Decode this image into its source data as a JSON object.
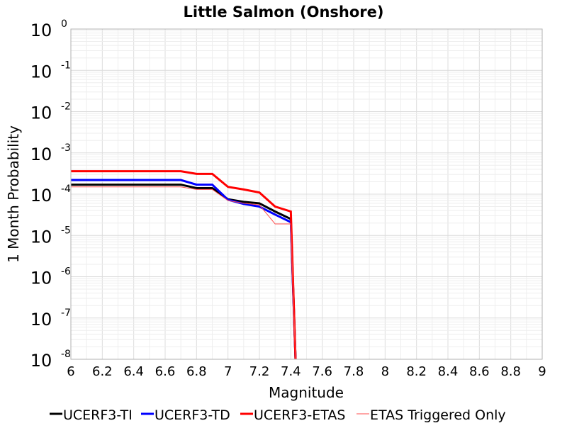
{
  "chart_data": {
    "type": "line",
    "title": "Little Salmon (Onshore)",
    "xlabel": "Magnitude",
    "ylabel": "1 Month Probability",
    "xlim": [
      6,
      9
    ],
    "ylim": [
      1e-08,
      1
    ],
    "yscale": "log",
    "grid": true,
    "legend_placement": "bottom",
    "x_ticks": [
      "6",
      "6.2",
      "6.4",
      "6.6",
      "6.8",
      "7",
      "7.2",
      "7.4",
      "7.6",
      "7.8",
      "8",
      "8.2",
      "8.4",
      "8.6",
      "8.8",
      "9"
    ],
    "y_ticks": [
      {
        "base": "10",
        "exp": "0"
      },
      {
        "base": "10",
        "exp": "-1"
      },
      {
        "base": "10",
        "exp": "-2"
      },
      {
        "base": "10",
        "exp": "-3"
      },
      {
        "base": "10",
        "exp": "-4"
      },
      {
        "base": "10",
        "exp": "-5"
      },
      {
        "base": "10",
        "exp": "-6"
      },
      {
        "base": "10",
        "exp": "-7"
      },
      {
        "base": "10",
        "exp": "-8"
      }
    ],
    "series": [
      {
        "name": "UCERF3-TI",
        "color": "#000000",
        "width": 3,
        "x": [
          6.0,
          6.7,
          6.8,
          6.9,
          7.0,
          7.1,
          7.2,
          7.3,
          7.4,
          7.43
        ],
        "y": [
          0.00017,
          0.00017,
          0.00014,
          0.00014,
          7.5e-05,
          6.5e-05,
          6e-05,
          3.8e-05,
          2.5e-05,
          1e-08
        ]
      },
      {
        "name": "UCERF3-TD",
        "color": "#0000ff",
        "width": 3,
        "x": [
          6.0,
          6.7,
          6.8,
          6.9,
          7.0,
          7.1,
          7.2,
          7.3,
          7.4,
          7.43
        ],
        "y": [
          0.00022,
          0.00022,
          0.00017,
          0.00017,
          7.3e-05,
          5.8e-05,
          5e-05,
          3.2e-05,
          2.1e-05,
          1e-08
        ]
      },
      {
        "name": "UCERF3-ETAS",
        "color": "#ff0000",
        "width": 3,
        "x": [
          6.0,
          6.7,
          6.8,
          6.9,
          7.0,
          7.1,
          7.2,
          7.3,
          7.4,
          7.43
        ],
        "y": [
          0.00036,
          0.00036,
          0.00031,
          0.00031,
          0.00015,
          0.00013,
          0.00011,
          5e-05,
          3.8e-05,
          1e-08
        ]
      },
      {
        "name": "ETAS Triggered Only",
        "color": "#ff4d4d",
        "width": 1,
        "x": [
          6.0,
          6.7,
          6.8,
          6.9,
          7.0,
          7.1,
          7.2,
          7.3,
          7.4,
          7.43
        ],
        "y": [
          0.00015,
          0.00015,
          0.00013,
          0.00013,
          7e-05,
          6e-05,
          5.5e-05,
          1.9e-05,
          1.9e-05,
          1e-08
        ]
      }
    ]
  }
}
